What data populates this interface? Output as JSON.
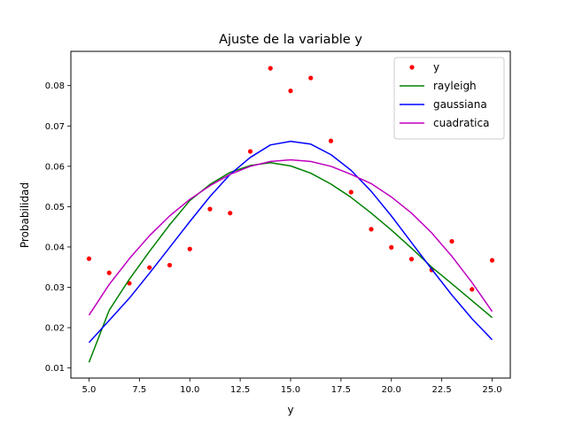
{
  "chart_data": {
    "type": "line",
    "title": "Ajuste de la variable y",
    "xlabel": "y",
    "ylabel": "Probabilidad",
    "xlim": [
      4.1,
      25.9
    ],
    "ylim": [
      0.0075,
      0.0885
    ],
    "xticks": [
      5.0,
      7.5,
      10.0,
      12.5,
      15.0,
      17.5,
      20.0,
      22.5,
      25.0
    ],
    "xtick_labels": [
      "5.0",
      "7.5",
      "10.0",
      "12.5",
      "15.0",
      "17.5",
      "20.0",
      "22.5",
      "25.0"
    ],
    "yticks": [
      0.01,
      0.02,
      0.03,
      0.04,
      0.05,
      0.06,
      0.07,
      0.08
    ],
    "ytick_labels": [
      "0.01",
      "0.02",
      "0.03",
      "0.04",
      "0.05",
      "0.06",
      "0.07",
      "0.08"
    ],
    "x": [
      5,
      6,
      7,
      8,
      9,
      10,
      11,
      12,
      13,
      14,
      15,
      16,
      17,
      18,
      19,
      20,
      21,
      22,
      23,
      24,
      25
    ],
    "grid": false,
    "legend_position": "top-right",
    "series": [
      {
        "name": "y",
        "kind": "scatter",
        "color": "#ff0000",
        "values": [
          0.0371,
          0.0336,
          0.031,
          0.0349,
          0.0355,
          0.0395,
          0.0494,
          0.0484,
          0.0637,
          0.0843,
          0.0787,
          0.0819,
          0.0663,
          0.0536,
          0.0444,
          0.0399,
          0.037,
          0.0343,
          0.0414,
          0.0295,
          0.0367
        ]
      },
      {
        "name": "rayleigh",
        "kind": "line",
        "color": "#008000",
        "values": [
          0.0114,
          0.0243,
          0.032,
          0.0389,
          0.0455,
          0.0515,
          0.0555,
          0.0585,
          0.0602,
          0.0609,
          0.0601,
          0.0583,
          0.0556,
          0.0523,
          0.0484,
          0.0442,
          0.0397,
          0.035,
          0.0309,
          0.0267,
          0.0225
        ]
      },
      {
        "name": "gaussiana",
        "kind": "line",
        "color": "#0000ff",
        "values": [
          0.0163,
          0.0218,
          0.0273,
          0.0335,
          0.0399,
          0.0463,
          0.0525,
          0.058,
          0.0622,
          0.0653,
          0.0662,
          0.0655,
          0.0629,
          0.059,
          0.0538,
          0.0477,
          0.0411,
          0.0345,
          0.0281,
          0.0222,
          0.017
        ]
      },
      {
        "name": "cuadratica",
        "kind": "line",
        "color": "#bf00bf",
        "values": [
          0.0231,
          0.0307,
          0.0371,
          0.0428,
          0.0477,
          0.0518,
          0.0552,
          0.058,
          0.06,
          0.0612,
          0.0616,
          0.0612,
          0.06,
          0.058,
          0.0557,
          0.0524,
          0.0484,
          0.0435,
          0.0377,
          0.0312,
          0.024
        ]
      }
    ]
  }
}
